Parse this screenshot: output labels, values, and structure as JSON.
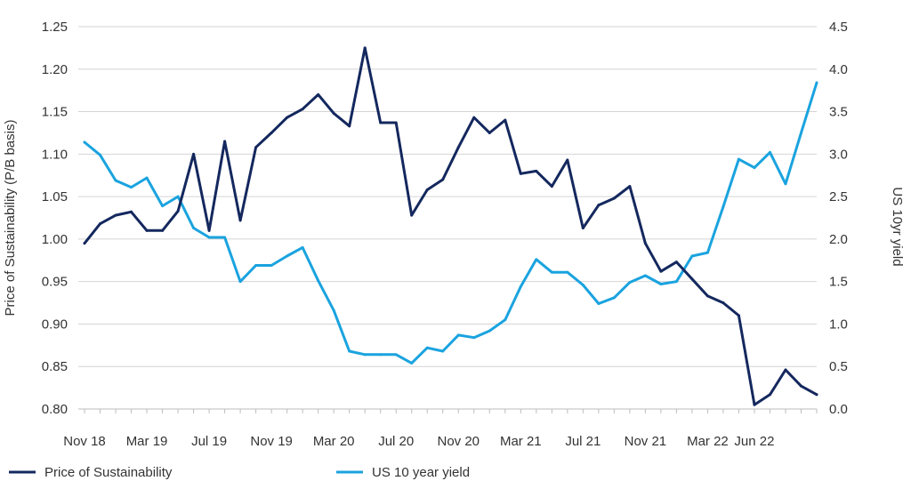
{
  "chart_data": {
    "type": "line",
    "title": "",
    "xlabel": "",
    "ylabel_left": "Price of Sustainability (P/B basis)",
    "ylabel_right": "US 10yr yield",
    "ylim_left": [
      0.8,
      1.25
    ],
    "ylim_right": [
      0.0,
      4.5
    ],
    "grid": "horizontal",
    "legend_position": "bottom",
    "x_tick_labels": [
      "Nov 18",
      "Mar 19",
      "Jul 19",
      "Nov 19",
      "Mar 20",
      "Jul 20",
      "Nov 20",
      "Mar 21",
      "Jul 21",
      "Nov 21",
      "Mar 22",
      "Jun 22"
    ],
    "x_tick_index": [
      0,
      4,
      8,
      12,
      16,
      20,
      24,
      28,
      32,
      36,
      40,
      43
    ],
    "left_ticks": [
      "0.80",
      "0.85",
      "0.90",
      "0.95",
      "1.00",
      "1.05",
      "1.10",
      "1.15",
      "1.20",
      "1.25"
    ],
    "right_ticks": [
      "0.0",
      "0.5",
      "1.0",
      "1.5",
      "2.0",
      "2.5",
      "3.0",
      "3.5",
      "4.0",
      "4.5"
    ],
    "x_dates": [
      "Nov 18",
      "Dec 18",
      "Jan 19",
      "Feb 19",
      "Mar 19",
      "Apr 19",
      "May 19",
      "Jun 19",
      "Jul 19",
      "Aug 19",
      "Sep 19",
      "Oct 19",
      "Nov 19",
      "Dec 19",
      "Jan 20",
      "Feb 20",
      "Mar 20",
      "Apr 20",
      "May 20",
      "Jun 20",
      "Jul 20",
      "Aug 20",
      "Sep 20",
      "Oct 20",
      "Nov 20",
      "Dec 20",
      "Jan 21",
      "Feb 21",
      "Mar 21",
      "Apr 21",
      "May 21",
      "Jun 21",
      "Jul 21",
      "Aug 21",
      "Sep 21",
      "Oct 21",
      "Nov 21",
      "Dec 21",
      "Jan 22",
      "Feb 22",
      "Mar 22",
      "Apr 22",
      "May 22",
      "Jun 22",
      "Jul 22",
      "Aug 22",
      "Sep 22",
      "Oct 22"
    ],
    "series": [
      {
        "name": "Price of Sustainability",
        "axis": "left",
        "color": "#14285e",
        "values": [
          0.995,
          1.018,
          1.028,
          1.032,
          1.01,
          1.01,
          1.033,
          1.1,
          1.01,
          1.115,
          1.022,
          1.108,
          1.125,
          1.143,
          1.153,
          1.17,
          1.148,
          1.133,
          1.225,
          1.137,
          1.137,
          1.028,
          1.058,
          1.07,
          1.108,
          1.143,
          1.125,
          1.14,
          1.077,
          1.08,
          1.062,
          1.093,
          1.013,
          1.04,
          1.048,
          1.062,
          0.995,
          0.962,
          0.973,
          0.953,
          0.933,
          0.925,
          0.91,
          0.805,
          0.817,
          0.846,
          0.827,
          0.817
        ]
      },
      {
        "name": "US 10 year yield",
        "axis": "right",
        "color": "#1aa3df",
        "values": [
          3.14,
          2.99,
          2.69,
          2.61,
          2.72,
          2.39,
          2.5,
          2.13,
          2.02,
          2.02,
          1.5,
          1.69,
          1.69,
          1.8,
          1.9,
          1.51,
          1.16,
          0.68,
          0.64,
          0.64,
          0.64,
          0.54,
          0.72,
          0.68,
          0.87,
          0.84,
          0.92,
          1.05,
          1.44,
          1.76,
          1.61,
          1.61,
          1.46,
          1.24,
          1.31,
          1.49,
          1.57,
          1.47,
          1.5,
          1.8,
          1.84,
          2.38,
          2.94,
          2.84,
          3.02,
          2.65,
          3.25,
          3.84
        ]
      }
    ]
  }
}
